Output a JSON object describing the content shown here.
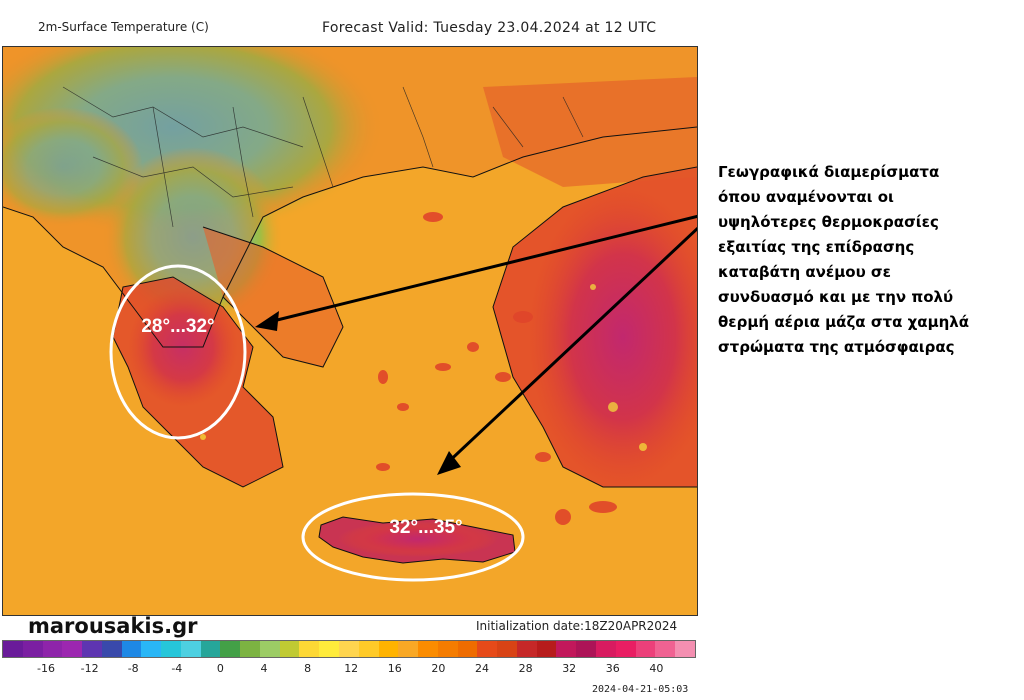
{
  "header": {
    "title_left": "2m-Surface Temperature (C)",
    "title_right": "Forecast Valid:  Tuesday 23.04.2024 at 12 UTC"
  },
  "map": {
    "region_labels": [
      {
        "name": "western-greece",
        "text": "28°...32°"
      },
      {
        "name": "crete",
        "text": "32°...35°"
      }
    ],
    "colors": {
      "sea_orange": "#f2a126",
      "warm_red": "#e0452a",
      "hot_magenta": "#c2286e",
      "cold_cyan": "#37c3d8",
      "cold_green": "#6bbf3a",
      "highlight_yellow": "#f5e63a"
    }
  },
  "annotation": {
    "lines": [
      "Γεωγραφικά διαμερίσματα",
      "όπου αναμένονται οι",
      "υψηλότερες θερμοκρασίες",
      "εξαιτίας της επίδρασης",
      "καταβάτη ανέμου σε",
      "συνδυασμό και με την πολύ",
      "θερμή αέρια μάζα στα χαμηλά",
      "στρώματα της ατμόσφαιρας"
    ]
  },
  "footer": {
    "brand": "marousakis.gr",
    "init_date": "Initialization date:18Z20APR2024",
    "run_time": "2024-04-21-05:03"
  },
  "colorbar": {
    "colors": [
      "#6a1b9a",
      "#7b1fa2",
      "#8e24aa",
      "#9c27b0",
      "#5e35b1",
      "#3949ab",
      "#1e88e5",
      "#29b6f6",
      "#26c6da",
      "#4dd0e1",
      "#26a69a",
      "#43a047",
      "#7cb342",
      "#9ccc65",
      "#c0ca33",
      "#fdd835",
      "#ffeb3b",
      "#ffd54f",
      "#ffca28",
      "#ffb300",
      "#f9a825",
      "#fb8c00",
      "#f57c00",
      "#ef6c00",
      "#e64a19",
      "#d84315",
      "#c62828",
      "#b71c1c",
      "#c2185b",
      "#ad1457",
      "#d81b60",
      "#e91e63",
      "#ec407a",
      "#f06292",
      "#f48fb1"
    ],
    "ticks": [
      "-16",
      "-12",
      "-8",
      "-4",
      "0",
      "4",
      "8",
      "12",
      "16",
      "20",
      "24",
      "28",
      "32",
      "36",
      "40"
    ]
  }
}
